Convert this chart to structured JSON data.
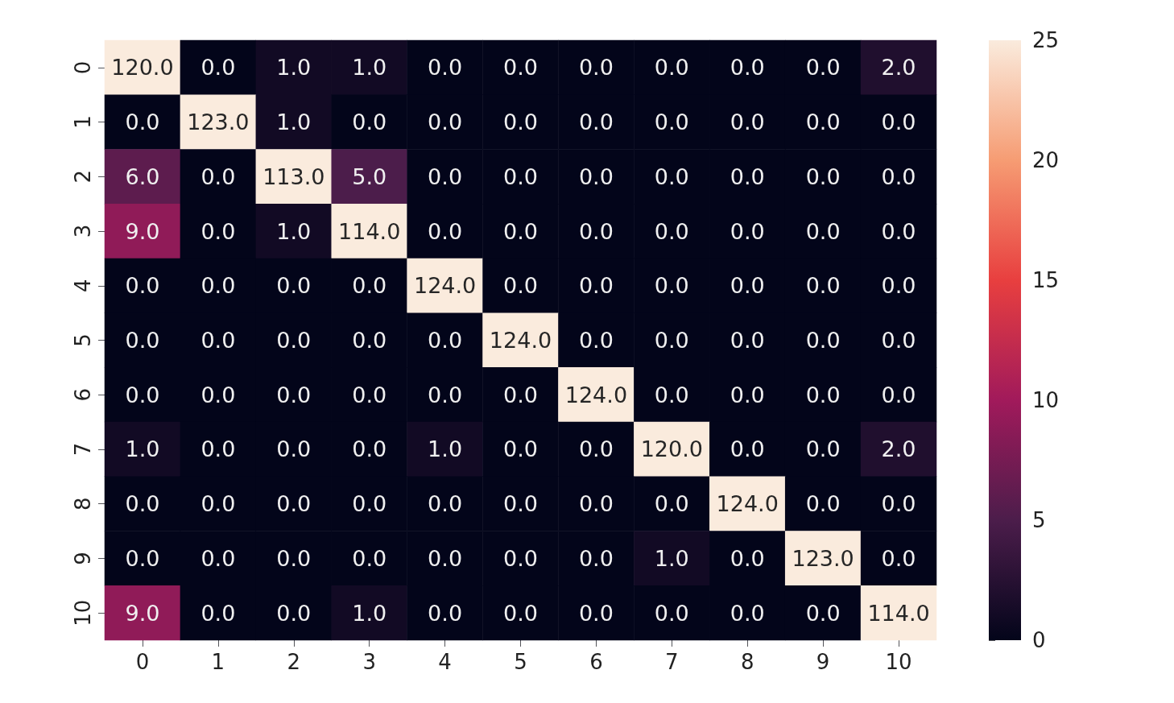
{
  "chart_data": {
    "type": "heatmap",
    "categories": [
      "0",
      "1",
      "2",
      "3",
      "4",
      "5",
      "6",
      "7",
      "8",
      "9",
      "10"
    ],
    "y_categories": [
      "0",
      "1",
      "2",
      "3",
      "4",
      "5",
      "6",
      "7",
      "8",
      "9",
      "10"
    ],
    "cells": [
      [
        120,
        0,
        1,
        1,
        0,
        0,
        0,
        0,
        0,
        0,
        2
      ],
      [
        0,
        123,
        1,
        0,
        0,
        0,
        0,
        0,
        0,
        0,
        0
      ],
      [
        6,
        0,
        113,
        5,
        0,
        0,
        0,
        0,
        0,
        0,
        0
      ],
      [
        9,
        0,
        1,
        114,
        0,
        0,
        0,
        0,
        0,
        0,
        0
      ],
      [
        0,
        0,
        0,
        0,
        124,
        0,
        0,
        0,
        0,
        0,
        0
      ],
      [
        0,
        0,
        0,
        0,
        0,
        124,
        0,
        0,
        0,
        0,
        0
      ],
      [
        0,
        0,
        0,
        0,
        0,
        0,
        124,
        0,
        0,
        0,
        0
      ],
      [
        1,
        0,
        0,
        0,
        1,
        0,
        0,
        120,
        0,
        0,
        2
      ],
      [
        0,
        0,
        0,
        0,
        0,
        0,
        0,
        0,
        124,
        0,
        0
      ],
      [
        0,
        0,
        0,
        0,
        0,
        0,
        0,
        1,
        0,
        123,
        0
      ],
      [
        9,
        0,
        0,
        1,
        0,
        0,
        0,
        0,
        0,
        0,
        114
      ]
    ],
    "cell_labels": [
      [
        "120.0",
        "0.0",
        "1.0",
        "1.0",
        "0.0",
        "0.0",
        "0.0",
        "0.0",
        "0.0",
        "0.0",
        "2.0"
      ],
      [
        "0.0",
        "123.0",
        "1.0",
        "0.0",
        "0.0",
        "0.0",
        "0.0",
        "0.0",
        "0.0",
        "0.0",
        "0.0"
      ],
      [
        "6.0",
        "0.0",
        "113.0",
        "5.0",
        "0.0",
        "0.0",
        "0.0",
        "0.0",
        "0.0",
        "0.0",
        "0.0"
      ],
      [
        "9.0",
        "0.0",
        "1.0",
        "114.0",
        "0.0",
        "0.0",
        "0.0",
        "0.0",
        "0.0",
        "0.0",
        "0.0"
      ],
      [
        "0.0",
        "0.0",
        "0.0",
        "0.0",
        "124.0",
        "0.0",
        "0.0",
        "0.0",
        "0.0",
        "0.0",
        "0.0"
      ],
      [
        "0.0",
        "0.0",
        "0.0",
        "0.0",
        "0.0",
        "124.0",
        "0.0",
        "0.0",
        "0.0",
        "0.0",
        "0.0"
      ],
      [
        "0.0",
        "0.0",
        "0.0",
        "0.0",
        "0.0",
        "0.0",
        "124.0",
        "0.0",
        "0.0",
        "0.0",
        "0.0"
      ],
      [
        "1.0",
        "0.0",
        "0.0",
        "0.0",
        "1.0",
        "0.0",
        "0.0",
        "120.0",
        "0.0",
        "0.0",
        "2.0"
      ],
      [
        "0.0",
        "0.0",
        "0.0",
        "0.0",
        "0.0",
        "0.0",
        "0.0",
        "0.0",
        "124.0",
        "0.0",
        "0.0"
      ],
      [
        "0.0",
        "0.0",
        "0.0",
        "0.0",
        "0.0",
        "0.0",
        "0.0",
        "1.0",
        "0.0",
        "123.0",
        "0.0"
      ],
      [
        "9.0",
        "0.0",
        "0.0",
        "1.0",
        "0.0",
        "0.0",
        "0.0",
        "0.0",
        "0.0",
        "0.0",
        "114.0"
      ]
    ],
    "clim": [
      0,
      25
    ],
    "cticks": [
      0,
      5,
      10,
      15,
      20,
      25
    ]
  }
}
